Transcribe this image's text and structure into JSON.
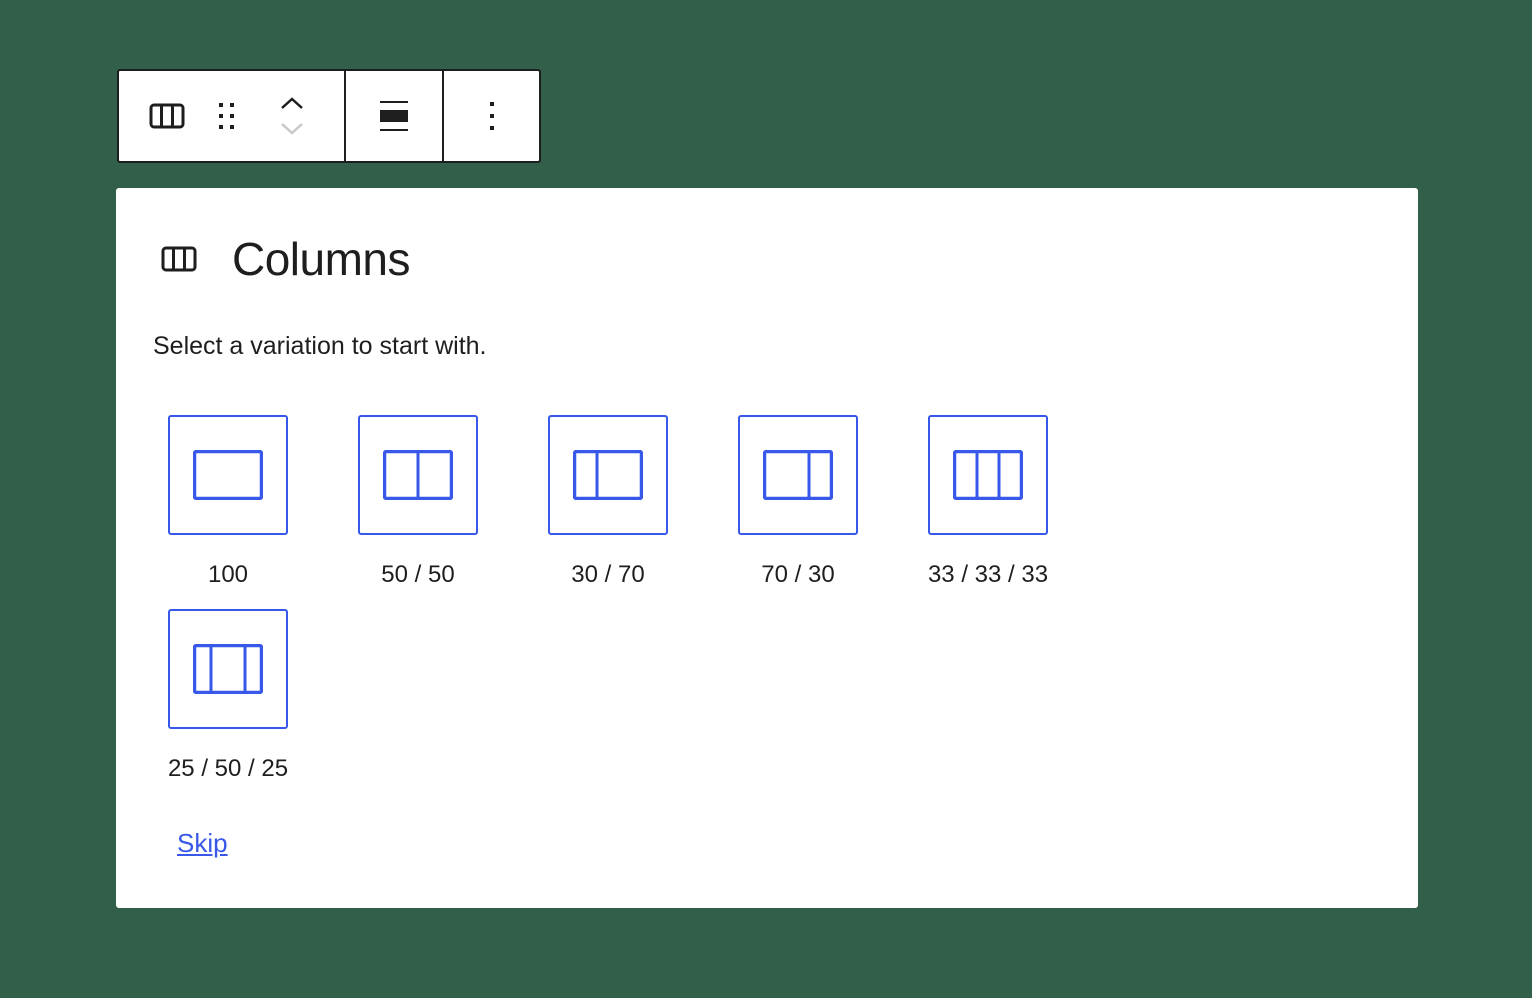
{
  "colors": {
    "background": "#325f49",
    "accent": "#3858e9",
    "text": "#1e1e1e"
  },
  "toolbar": {
    "icons": [
      "columns-icon",
      "drag-handle-icon",
      "move-up-icon",
      "move-down-icon",
      "align-full-icon",
      "more-options-icon"
    ]
  },
  "placeholder": {
    "title": "Columns",
    "instructions": "Select a variation to start with.",
    "variations": [
      {
        "label": "100"
      },
      {
        "label": "50 / 50"
      },
      {
        "label": "30 / 70"
      },
      {
        "label": "70 / 30"
      },
      {
        "label": "33 / 33 / 33"
      },
      {
        "label": "25 / 50 / 25"
      }
    ],
    "skip_label": "Skip"
  }
}
